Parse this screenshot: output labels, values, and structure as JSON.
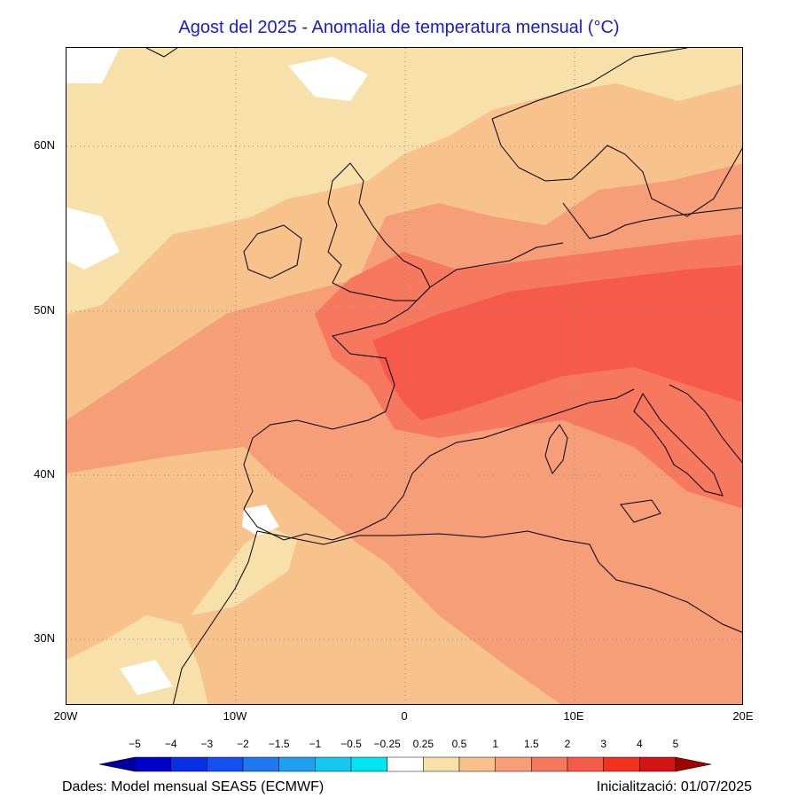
{
  "title": "Agost del 2025 - Anomalia de temperatura mensual (°C)",
  "map": {
    "type": "contour_map",
    "variable": "Anomalia de temperatura mensual",
    "units": "°C",
    "lon_range": [
      -20,
      20
    ],
    "lat_range": [
      26,
      66
    ],
    "grid": true,
    "lat_ticks": [
      {
        "value": 30,
        "label": "30N"
      },
      {
        "value": 40,
        "label": "40N"
      },
      {
        "value": 50,
        "label": "50N"
      },
      {
        "value": 60,
        "label": "60N"
      }
    ],
    "lon_ticks": [
      {
        "value": -20,
        "label": "20W"
      },
      {
        "value": -10,
        "label": "10W"
      },
      {
        "value": 0,
        "label": "0"
      },
      {
        "value": 10,
        "label": "10E"
      },
      {
        "value": 20,
        "label": "20E"
      }
    ]
  },
  "legend": {
    "labels": [
      "−5",
      "−4",
      "−3",
      "−2",
      "−1.5",
      "−1",
      "−0.5",
      "−0.25",
      "0.25",
      "0.5",
      "1",
      "1.5",
      "2",
      "3",
      "4",
      "5"
    ],
    "colors": [
      "#0000c8",
      "#0a2ee6",
      "#1450f0",
      "#1e78f0",
      "#1ea0f0",
      "#14c8f0",
      "#00e6f0",
      "#ffffff",
      "#f7e0aa",
      "#f7c28c",
      "#f59e78",
      "#f5785f",
      "#f55a4b",
      "#f0321e",
      "#d21414"
    ],
    "low_color": "#0000a0",
    "high_color": "#a00000"
  },
  "footer": {
    "source": "Dades: Model mensual SEAS5 (ECMWF)",
    "init": "Inicialització: 01/07/2025"
  }
}
